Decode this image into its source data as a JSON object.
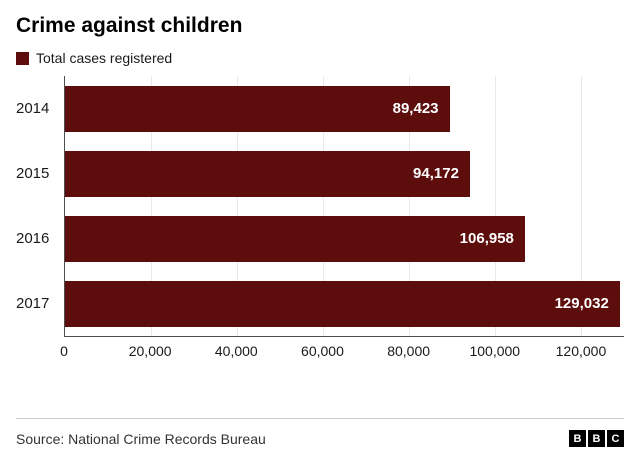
{
  "title": "Crime against children",
  "legend": {
    "label": "Total cases registered",
    "color": "#5e0d0d"
  },
  "source": "Source: National Crime Records Bureau",
  "logo": {
    "letters": [
      "B",
      "B",
      "C"
    ]
  },
  "colors": {
    "bar": "#5e0d0d",
    "axis": "#4d4d4d",
    "gridline": "#e9e9e9",
    "value_label": "#ffffff"
  },
  "chart_data": {
    "type": "bar",
    "orientation": "horizontal",
    "title": "Crime against children",
    "legend_entries": [
      "Total cases registered"
    ],
    "categories": [
      "2014",
      "2015",
      "2016",
      "2017"
    ],
    "values": [
      89423,
      94172,
      106958,
      129032
    ],
    "value_labels": [
      "89,423",
      "94,172",
      "106,958",
      "129,032"
    ],
    "xlabel": "",
    "ylabel": "",
    "xlim": [
      0,
      130000
    ],
    "xticks": [
      0,
      20000,
      40000,
      60000,
      80000,
      100000,
      120000
    ],
    "xtick_labels": [
      "0",
      "20,000",
      "40,000",
      "60,000",
      "80,000",
      "100,000",
      "120,000"
    ],
    "grid": true,
    "legend_position": "top-left"
  }
}
